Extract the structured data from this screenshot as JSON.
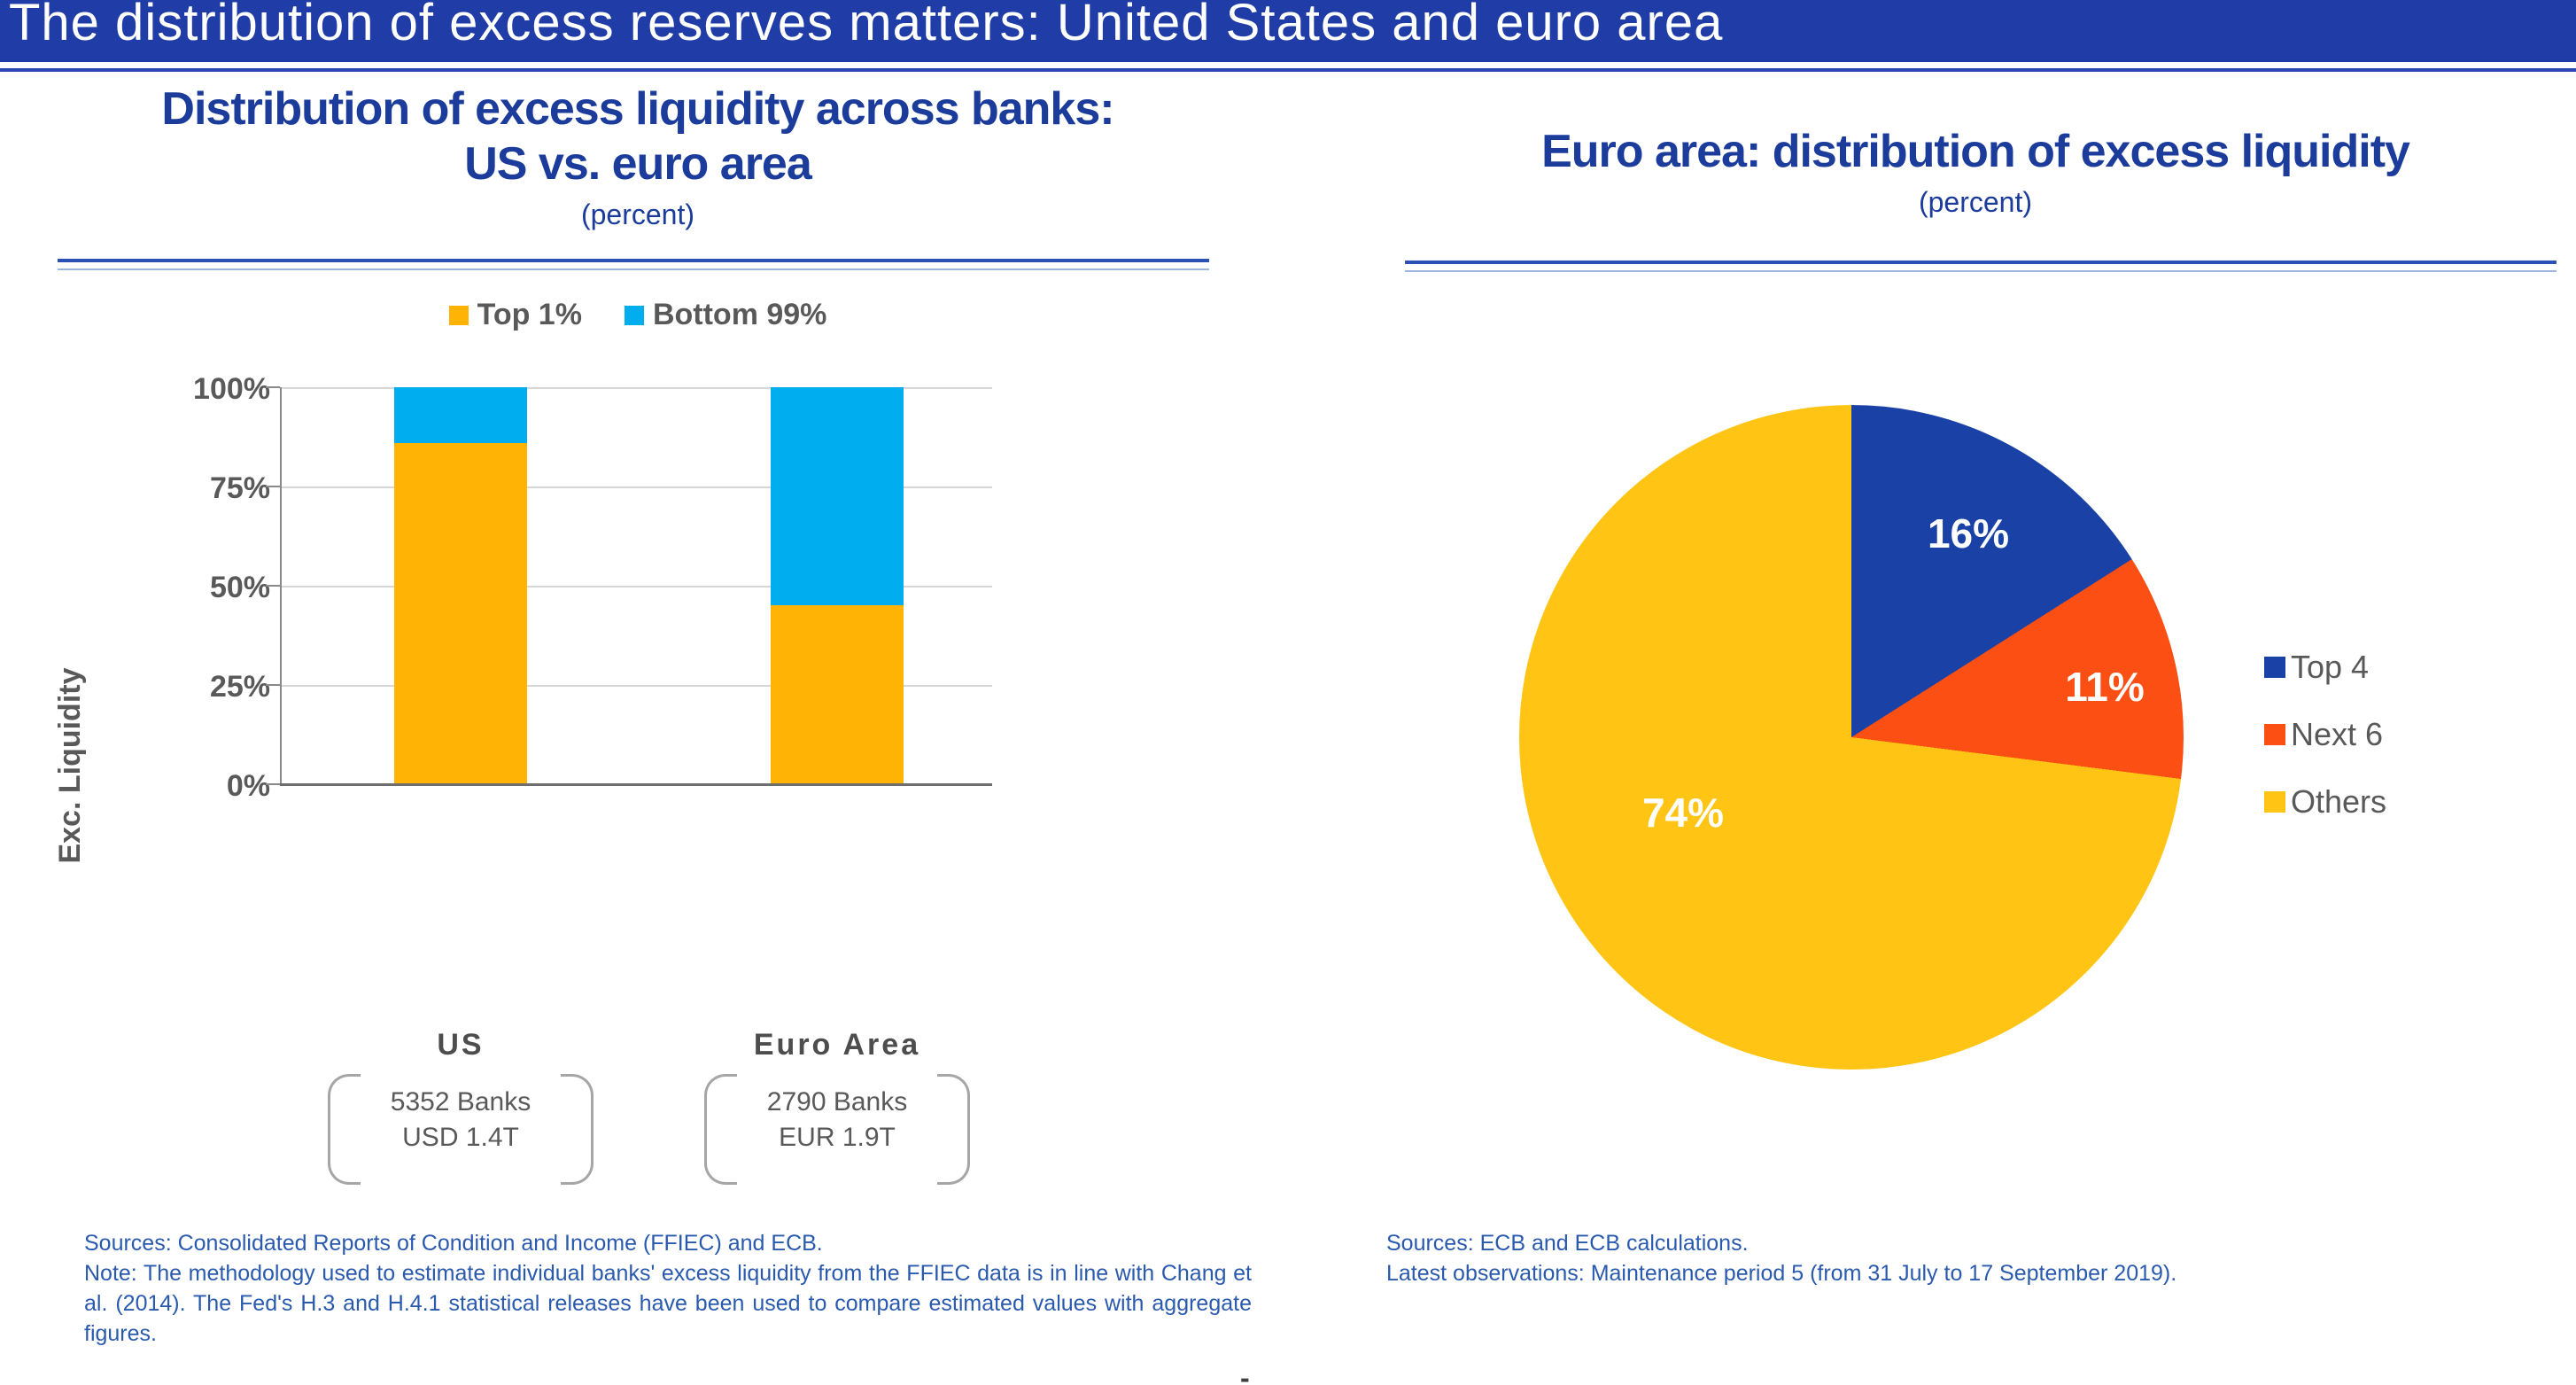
{
  "header": {
    "title": "The distribution of excess reserves matters: United States and euro area"
  },
  "left_chart": {
    "title_line1": "Distribution of excess liquidity across banks:",
    "title_line2": "US vs. euro area",
    "subtitle": "(percent)",
    "y_axis_label": "Exc. Liquidity",
    "y_tick_labels": [
      "100%",
      "75%",
      "50%",
      "25%",
      "0%"
    ],
    "annotations": [
      {
        "line1": "5352 Banks",
        "line2": "USD 1.4T"
      },
      {
        "line1": "2790 Banks",
        "line2": "EUR 1.9T"
      }
    ],
    "sources": "Sources: Consolidated Reports of Condition and Income (FFIEC) and ECB.",
    "note": "Note: The methodology used to estimate individual banks' excess liquidity from the FFIEC data is in line with Chang et al. (2014). The Fed's H.3 and H.4.1 statistical releases have been used to compare estimated values with aggregate figures."
  },
  "right_chart": {
    "title": "Euro area: distribution of excess liquidity",
    "subtitle": "(percent)",
    "sources": "Sources: ECB and ECB calculations.",
    "latest_observations": "Latest observations: Maintenance period 5 (from 31 July to 17 September 2019)."
  },
  "footer": {
    "dash": "-"
  },
  "colors": {
    "header_background": "#203CA6",
    "title_blue": "#1B3C9B",
    "source_text_blue": "#2A5AAE",
    "axis_text_gray": "#595959",
    "bar_top1_orange": "#FFB405",
    "bar_bottom99_cyan": "#00AEEF",
    "pie_top4_blue": "#1941A6",
    "pie_next6_red": "#FB4F14",
    "pie_others_yellow": "#FFC414"
  },
  "chart_data": [
    {
      "type": "bar",
      "stacked": true,
      "title": "Distribution of excess liquidity across banks: US vs. euro area",
      "subtitle": "(percent)",
      "categories": [
        "US",
        "Euro Area"
      ],
      "series": [
        {
          "name": "Top 1%",
          "color": "#FFB405",
          "values": [
            86,
            45
          ]
        },
        {
          "name": "Bottom 99%",
          "color": "#00AEEF",
          "values": [
            14,
            55
          ]
        }
      ],
      "xlabel": "",
      "ylabel": "Exc. Liquidity",
      "ylim": [
        0,
        100
      ],
      "y_ticks_percent": [
        0,
        25,
        50,
        75,
        100
      ],
      "grid": true,
      "legend_position": "top",
      "category_annotations": [
        "5352 Banks USD 1.4T",
        "2790 Banks EUR 1.9T"
      ]
    },
    {
      "type": "pie",
      "title": "Euro area: distribution of excess liquidity",
      "subtitle": "(percent)",
      "labels": [
        "Top 4",
        "Next 6",
        "Others"
      ],
      "values": [
        16,
        11,
        74
      ],
      "value_labels": [
        "16%",
        "11%",
        "74%"
      ],
      "colors": [
        "#1941A6",
        "#FB4F14",
        "#FFC414"
      ],
      "start_angle_deg": 0,
      "direction": "clockwise",
      "legend_position": "right"
    }
  ]
}
